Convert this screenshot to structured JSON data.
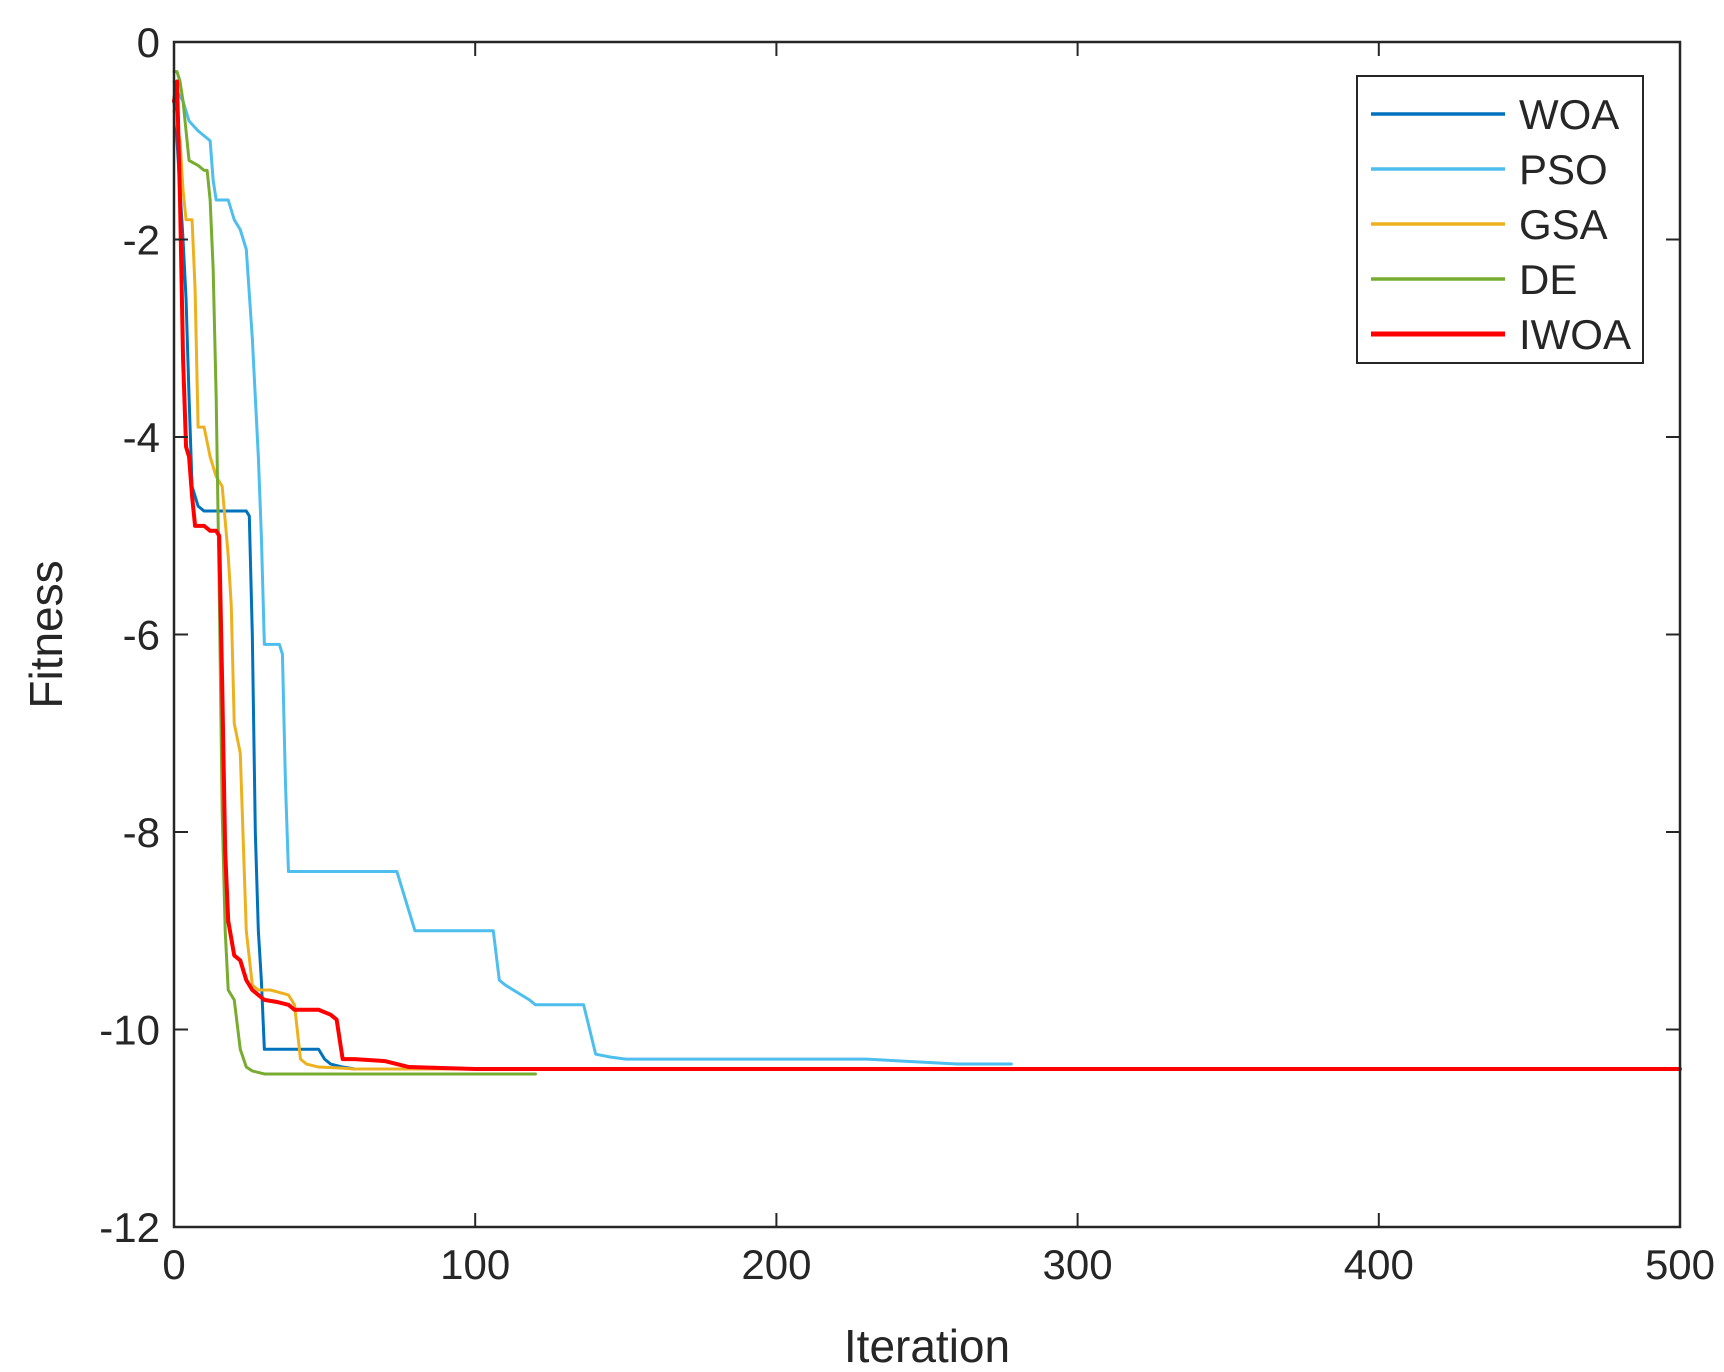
{
  "chart_data": {
    "type": "line",
    "title": "",
    "xlabel": "Iteration",
    "ylabel": "Fitness",
    "xlim": [
      0,
      500
    ],
    "ylim": [
      -12,
      0
    ],
    "xticks": [
      0,
      100,
      200,
      300,
      400,
      500
    ],
    "yticks": [
      0,
      -2,
      -4,
      -6,
      -8,
      -10,
      -12
    ],
    "grid": false,
    "legend_position": "top-right",
    "series": [
      {
        "name": "WOA",
        "color": "#0072BD",
        "x": [
          0,
          1,
          2,
          3,
          4,
          5,
          6,
          7,
          8,
          10,
          14,
          20,
          24,
          25,
          26,
          27,
          28,
          29,
          30,
          32,
          36,
          48,
          50,
          52,
          56,
          60,
          70,
          80,
          90,
          102
        ],
        "y": [
          -0.6,
          -1.0,
          -1.5,
          -2.0,
          -2.6,
          -3.6,
          -4.5,
          -4.6,
          -4.7,
          -4.75,
          -4.75,
          -4.75,
          -4.75,
          -4.8,
          -6.0,
          -8.0,
          -9.0,
          -9.5,
          -10.2,
          -10.2,
          -10.2,
          -10.2,
          -10.3,
          -10.35,
          -10.38,
          -10.4,
          -10.4,
          -10.4,
          -10.4,
          -10.4
        ]
      },
      {
        "name": "PSO",
        "color": "#4DBEEE",
        "x": [
          0,
          1,
          3,
          5,
          8,
          12,
          13,
          14,
          18,
          20,
          22,
          24,
          26,
          28,
          29,
          30,
          31,
          32,
          35,
          36,
          37,
          38,
          40,
          60,
          74,
          80,
          100,
          106,
          108,
          110,
          118,
          120,
          136,
          138,
          140,
          145,
          150,
          180,
          200,
          230,
          260,
          278
        ],
        "y": [
          -0.4,
          -0.5,
          -0.6,
          -0.8,
          -0.9,
          -1.0,
          -1.4,
          -1.6,
          -1.6,
          -1.8,
          -1.9,
          -2.1,
          -3.0,
          -4.2,
          -5.0,
          -6.1,
          -6.1,
          -6.1,
          -6.1,
          -6.2,
          -7.5,
          -8.4,
          -8.4,
          -8.4,
          -8.4,
          -9.0,
          -9.0,
          -9.0,
          -9.5,
          -9.55,
          -9.7,
          -9.75,
          -9.75,
          -10.0,
          -10.25,
          -10.28,
          -10.3,
          -10.3,
          -10.3,
          -10.3,
          -10.35,
          -10.35
        ]
      },
      {
        "name": "GSA",
        "color": "#EDB120",
        "x": [
          0,
          2,
          3,
          4,
          5,
          6,
          7,
          8,
          10,
          12,
          14,
          16,
          18,
          19,
          20,
          22,
          24,
          26,
          28,
          30,
          32,
          38,
          40,
          42,
          44,
          48,
          55,
          60,
          70,
          80,
          100
        ],
        "y": [
          -0.7,
          -1.0,
          -1.5,
          -1.8,
          -1.8,
          -1.8,
          -2.5,
          -3.9,
          -3.9,
          -4.2,
          -4.4,
          -4.5,
          -5.2,
          -5.7,
          -6.9,
          -7.2,
          -9.0,
          -9.55,
          -9.6,
          -9.6,
          -9.6,
          -9.65,
          -9.75,
          -10.3,
          -10.35,
          -10.38,
          -10.39,
          -10.4,
          -10.4,
          -10.4,
          -10.4
        ]
      },
      {
        "name": "DE",
        "color": "#77AC30",
        "x": [
          0,
          1,
          2,
          3,
          4,
          5,
          8,
          10,
          11,
          12,
          13,
          14,
          15,
          16,
          17,
          18,
          20,
          22,
          24,
          26,
          30,
          40,
          60,
          80,
          100,
          120
        ],
        "y": [
          -0.3,
          -0.3,
          -0.4,
          -0.6,
          -0.9,
          -1.2,
          -1.25,
          -1.3,
          -1.3,
          -1.6,
          -2.3,
          -3.6,
          -5.5,
          -7.8,
          -9.0,
          -9.6,
          -9.7,
          -10.2,
          -10.38,
          -10.42,
          -10.45,
          -10.45,
          -10.45,
          -10.45,
          -10.45,
          -10.45
        ]
      },
      {
        "name": "IWOA",
        "color": "#FF0000",
        "x": [
          0,
          1,
          2,
          3,
          4,
          5,
          6,
          7,
          10,
          12,
          14,
          15,
          16,
          17,
          18,
          20,
          22,
          24,
          26,
          28,
          30,
          34,
          38,
          40,
          42,
          44,
          48,
          52,
          54,
          56,
          60,
          70,
          74,
          78,
          100,
          150,
          200,
          300,
          400,
          500
        ],
        "y": [
          -0.6,
          -0.4,
          -1.6,
          -3.2,
          -4.1,
          -4.2,
          -4.6,
          -4.9,
          -4.9,
          -4.95,
          -4.95,
          -5.0,
          -6.5,
          -8.2,
          -8.9,
          -9.25,
          -9.3,
          -9.5,
          -9.6,
          -9.65,
          -9.7,
          -9.72,
          -9.75,
          -9.8,
          -9.8,
          -9.8,
          -9.8,
          -9.85,
          -9.9,
          -10.3,
          -10.3,
          -10.32,
          -10.35,
          -10.38,
          -10.4,
          -10.4,
          -10.4,
          -10.4,
          -10.4,
          -10.4
        ]
      }
    ]
  }
}
